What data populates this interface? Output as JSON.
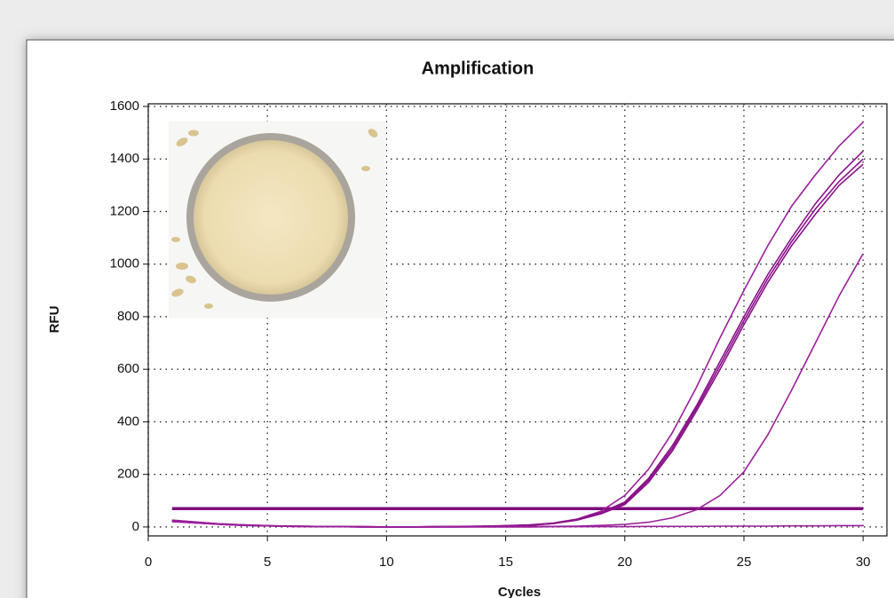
{
  "chart_data": {
    "type": "line",
    "title": "Amplification",
    "x_label": "Cycles",
    "y_label": "RFU",
    "x": [
      1,
      2,
      3,
      4,
      5,
      6,
      7,
      8,
      9,
      10,
      11,
      12,
      13,
      14,
      15,
      16,
      17,
      18,
      19,
      20,
      21,
      22,
      23,
      24,
      25,
      26,
      27,
      28,
      29,
      30
    ],
    "series": [
      {
        "color": "#9a1f9a",
        "values": [
          25,
          18,
          12,
          8,
          5,
          3,
          2,
          1,
          1,
          0,
          0,
          1,
          2,
          3,
          5,
          8,
          15,
          30,
          60,
          120,
          220,
          360,
          530,
          720,
          900,
          1070,
          1220,
          1340,
          1450,
          1540
        ]
      },
      {
        "color": "#8a118a",
        "values": [
          22,
          16,
          11,
          7,
          4,
          3,
          2,
          1,
          0,
          0,
          0,
          1,
          1,
          3,
          4,
          7,
          14,
          28,
          55,
          95,
          185,
          310,
          460,
          630,
          800,
          960,
          1100,
          1230,
          1340,
          1430
        ]
      },
      {
        "color": "#8a118a",
        "values": [
          20,
          15,
          10,
          6,
          4,
          2,
          1,
          1,
          0,
          0,
          0,
          0,
          1,
          2,
          4,
          7,
          13,
          26,
          50,
          85,
          170,
          290,
          440,
          600,
          770,
          930,
          1070,
          1190,
          1300,
          1380
        ]
      },
      {
        "color": "#8a118a",
        "values": [
          24,
          17,
          11,
          7,
          4,
          3,
          2,
          1,
          1,
          0,
          0,
          1,
          1,
          2,
          4,
          7,
          13,
          27,
          52,
          90,
          178,
          300,
          450,
          615,
          785,
          945,
          1085,
          1210,
          1315,
          1400
        ]
      },
      {
        "color": "#9a1f9a",
        "values": [
          21,
          15,
          10,
          6,
          4,
          2,
          1,
          1,
          0,
          0,
          0,
          0,
          0,
          1,
          1,
          2,
          2,
          3,
          6,
          10,
          18,
          35,
          65,
          120,
          210,
          350,
          520,
          700,
          880,
          1040
        ]
      },
      {
        "color": "#9a1f9a",
        "values": [
          26,
          19,
          12,
          8,
          5,
          3,
          2,
          1,
          1,
          0,
          0,
          0,
          0,
          0,
          0,
          0,
          1,
          1,
          1,
          1,
          2,
          2,
          2,
          3,
          3,
          3,
          4,
          4,
          5,
          5
        ]
      }
    ],
    "threshold": 70,
    "threshold_color": "#7d0c7d",
    "xlim": [
      0,
      31
    ],
    "xticks": [
      0,
      5,
      10,
      15,
      20,
      25,
      30
    ],
    "ylim": [
      -34,
      1610
    ],
    "yticks": [
      0,
      200,
      400,
      600,
      800,
      1000,
      1200,
      1400,
      1600
    ],
    "grid": true
  }
}
